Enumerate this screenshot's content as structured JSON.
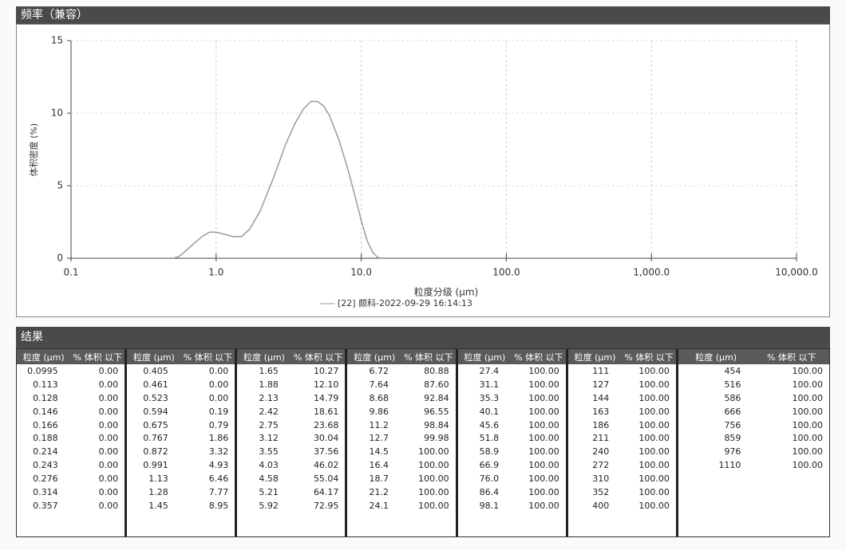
{
  "panel_title": "频率（兼容）",
  "chart_data": {
    "type": "line",
    "xlabel": "粒度分级 (μm)",
    "ylabel": "体积密度 (%)",
    "x": [
      0.5,
      0.55,
      0.6,
      0.7,
      0.8,
      0.9,
      1.0,
      1.1,
      1.3,
      1.5,
      1.7,
      2.0,
      2.5,
      3.0,
      3.5,
      4.0,
      4.5,
      5.0,
      5.5,
      6.0,
      7.0,
      8.0,
      9.0,
      10.0,
      11.0,
      12.0,
      13.0,
      14.0
    ],
    "series": [
      {
        "name": "[22] 颇科-2022-09-29 16:14:13",
        "color": "#9a9a9a",
        "values": [
          0,
          0.1,
          0.4,
          1.0,
          1.5,
          1.8,
          1.8,
          1.7,
          1.5,
          1.5,
          2.0,
          3.2,
          5.6,
          7.8,
          9.3,
          10.3,
          10.8,
          10.8,
          10.5,
          9.9,
          8.2,
          6.3,
          4.4,
          2.6,
          1.2,
          0.4,
          0.05,
          0
        ]
      }
    ],
    "xlim": [
      0.1,
      10000
    ],
    "x_log": true,
    "xticks": [
      0.1,
      {
        "value": 1,
        "label": "1.0"
      },
      {
        "value": 10,
        "label": "10.0"
      },
      {
        "value": 100,
        "label": "100.0"
      },
      {
        "value": 1000,
        "label": "1,000.0"
      },
      {
        "value": 10000,
        "label": "10,000.0"
      }
    ],
    "ylim": [
      0,
      15
    ],
    "yticks": [
      0,
      5,
      10,
      15
    ],
    "grid": true
  },
  "results": {
    "title": "结果",
    "headers": [
      "粒度 (μm)",
      "% 体积 以下"
    ],
    "groups": [
      [
        [
          "0.0995",
          "0.00"
        ],
        [
          "0.113",
          "0.00"
        ],
        [
          "0.128",
          "0.00"
        ],
        [
          "0.146",
          "0.00"
        ],
        [
          "0.166",
          "0.00"
        ],
        [
          "0.188",
          "0.00"
        ],
        [
          "0.214",
          "0.00"
        ],
        [
          "0.243",
          "0.00"
        ],
        [
          "0.276",
          "0.00"
        ],
        [
          "0.314",
          "0.00"
        ],
        [
          "0.357",
          "0.00"
        ]
      ],
      [
        [
          "0.405",
          "0.00"
        ],
        [
          "0.461",
          "0.00"
        ],
        [
          "0.523",
          "0.00"
        ],
        [
          "0.594",
          "0.19"
        ],
        [
          "0.675",
          "0.79"
        ],
        [
          "0.767",
          "1.86"
        ],
        [
          "0.872",
          "3.32"
        ],
        [
          "0.991",
          "4.93"
        ],
        [
          "1.13",
          "6.46"
        ],
        [
          "1.28",
          "7.77"
        ],
        [
          "1.45",
          "8.95"
        ]
      ],
      [
        [
          "1.65",
          "10.27"
        ],
        [
          "1.88",
          "12.10"
        ],
        [
          "2.13",
          "14.79"
        ],
        [
          "2.42",
          "18.61"
        ],
        [
          "2.75",
          "23.68"
        ],
        [
          "3.12",
          "30.04"
        ],
        [
          "3.55",
          "37.56"
        ],
        [
          "4.03",
          "46.02"
        ],
        [
          "4.58",
          "55.04"
        ],
        [
          "5.21",
          "64.17"
        ],
        [
          "5.92",
          "72.95"
        ]
      ],
      [
        [
          "6.72",
          "80.88"
        ],
        [
          "7.64",
          "87.60"
        ],
        [
          "8.68",
          "92.84"
        ],
        [
          "9.86",
          "96.55"
        ],
        [
          "11.2",
          "98.84"
        ],
        [
          "12.7",
          "99.98"
        ],
        [
          "14.5",
          "100.00"
        ],
        [
          "16.4",
          "100.00"
        ],
        [
          "18.7",
          "100.00"
        ],
        [
          "21.2",
          "100.00"
        ],
        [
          "24.1",
          "100.00"
        ]
      ],
      [
        [
          "27.4",
          "100.00"
        ],
        [
          "31.1",
          "100.00"
        ],
        [
          "35.3",
          "100.00"
        ],
        [
          "40.1",
          "100.00"
        ],
        [
          "45.6",
          "100.00"
        ],
        [
          "51.8",
          "100.00"
        ],
        [
          "58.9",
          "100.00"
        ],
        [
          "66.9",
          "100.00"
        ],
        [
          "76.0",
          "100.00"
        ],
        [
          "86.4",
          "100.00"
        ],
        [
          "98.1",
          "100.00"
        ]
      ],
      [
        [
          "111",
          "100.00"
        ],
        [
          "127",
          "100.00"
        ],
        [
          "144",
          "100.00"
        ],
        [
          "163",
          "100.00"
        ],
        [
          "186",
          "100.00"
        ],
        [
          "211",
          "100.00"
        ],
        [
          "240",
          "100.00"
        ],
        [
          "272",
          "100.00"
        ],
        [
          "310",
          "100.00"
        ],
        [
          "352",
          "100.00"
        ],
        [
          "400",
          "100.00"
        ]
      ],
      [
        [
          "454",
          "100.00"
        ],
        [
          "516",
          "100.00"
        ],
        [
          "586",
          "100.00"
        ],
        [
          "666",
          "100.00"
        ],
        [
          "756",
          "100.00"
        ],
        [
          "859",
          "100.00"
        ],
        [
          "976",
          "100.00"
        ],
        [
          "1110",
          "100.00"
        ]
      ]
    ]
  }
}
